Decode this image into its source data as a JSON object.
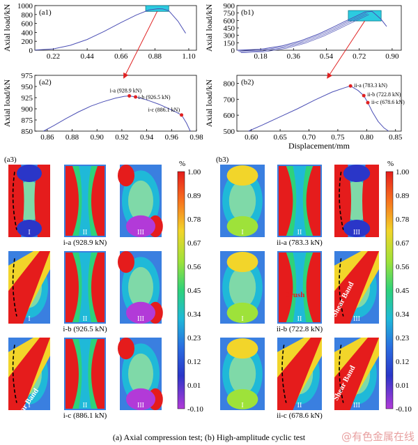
{
  "caption": "(a) Axial compression test; (b) High-amplitude cyclic test",
  "watermark": "@有色金属在线",
  "colors": {
    "curve": "#4b4fb5",
    "point": "#e02020",
    "arrow": "#e02020",
    "zoom_box": "#2ccbe0"
  },
  "chart_data": [
    {
      "id": "a1",
      "panel_label": "(a1)",
      "type": "line",
      "ylabel": "Axial load/kN",
      "xlabel": "",
      "xlim": [
        0.1,
        1.15
      ],
      "ylim": [
        0,
        1000
      ],
      "x_ticks": [
        "0.22",
        "0.44",
        "0.66",
        "0.88",
        "1.10"
      ],
      "y_ticks": [
        "0",
        "200",
        "400",
        "600",
        "800",
        "1000"
      ],
      "highlight_box": {
        "x": [
          0.82,
          0.97
        ],
        "y": [
          870,
          1000
        ]
      },
      "series": [
        {
          "x": [
            0.1,
            0.22,
            0.33,
            0.44,
            0.55,
            0.66,
            0.76,
            0.84,
            0.9,
            0.93,
            0.97,
            1.03,
            1.08
          ],
          "y": [
            5,
            30,
            110,
            240,
            420,
            620,
            790,
            900,
            930,
            926,
            886,
            650,
            380
          ]
        }
      ]
    },
    {
      "id": "a2",
      "panel_label": "(a2)",
      "type": "line",
      "ylabel": "Axial load/kN",
      "xlabel": "",
      "xlim": [
        0.85,
        0.98
      ],
      "ylim": [
        850,
        975
      ],
      "x_ticks": [
        "0.86",
        "0.88",
        "0.90",
        "0.92",
        "0.94",
        "0.96",
        "0.98"
      ],
      "y_ticks": [
        "850",
        "875",
        "900",
        "925",
        "950",
        "975"
      ],
      "points": [
        {
          "label": "i-a (928.9 kN)",
          "x": 0.926,
          "y": 928.9
        },
        {
          "label": "i-b (926.5 kN)",
          "x": 0.931,
          "y": 926.5
        },
        {
          "label": "i-c (886.1 kN)",
          "x": 0.968,
          "y": 886.1
        }
      ],
      "series": [
        {
          "x": [
            0.857,
            0.865,
            0.875,
            0.885,
            0.895,
            0.905,
            0.915,
            0.922,
            0.926,
            0.931,
            0.94,
            0.95,
            0.958,
            0.964,
            0.968,
            0.972,
            0.975
          ],
          "y": [
            850,
            862,
            878,
            893,
            906,
            916,
            924,
            928,
            928.9,
            926.5,
            920,
            910,
            900,
            892,
            886.1,
            868,
            850
          ]
        }
      ]
    },
    {
      "id": "b1",
      "panel_label": "(b1)",
      "type": "line",
      "ylabel": "Axial load/kN",
      "xlabel": "",
      "xlim": [
        0.05,
        0.95
      ],
      "ylim": [
        0,
        900
      ],
      "x_ticks": [
        "0.18",
        "0.36",
        "0.54",
        "0.72",
        "0.90"
      ],
      "y_ticks": [
        "0",
        "150",
        "300",
        "450",
        "600",
        "750",
        "900"
      ],
      "highlight_box": {
        "x": [
          0.66,
          0.84
        ],
        "y": [
          590,
          800
        ]
      },
      "series": [
        {
          "x": [
            0.05,
            0.18,
            0.3,
            0.4,
            0.5,
            0.58,
            0.64,
            0.7,
            0.75,
            0.79,
            0.81,
            0.84,
            0.87
          ],
          "y": [
            0,
            20,
            90,
            190,
            330,
            470,
            580,
            680,
            770,
            783,
            720,
            620,
            480
          ]
        }
      ]
    },
    {
      "id": "b2",
      "panel_label": "(b2)",
      "type": "line",
      "ylabel": "Axial load/kN",
      "xlabel": "Displacement/mm",
      "xlim": [
        0.575,
        0.86
      ],
      "ylim": [
        500,
        850
      ],
      "x_ticks": [
        "0.60",
        "0.65",
        "0.70",
        "0.75",
        "0.80",
        "0.85"
      ],
      "y_ticks": [
        "500",
        "600",
        "700",
        "800"
      ],
      "points": [
        {
          "label": "ii-a (783.3 kN)",
          "x": 0.772,
          "y": 783.3
        },
        {
          "label": "ii-b (722.8 kN)",
          "x": 0.795,
          "y": 722.8
        },
        {
          "label": "ii-c (678.6 kN)",
          "x": 0.802,
          "y": 678.6
        }
      ],
      "series": [
        {
          "x": [
            0.595,
            0.62,
            0.65,
            0.68,
            0.71,
            0.74,
            0.76,
            0.772,
            0.785,
            0.795,
            0.802,
            0.81,
            0.82,
            0.83,
            0.838
          ],
          "y": [
            500,
            540,
            590,
            640,
            695,
            745,
            770,
            783.3,
            755,
            722.8,
            678.6,
            620,
            560,
            520,
            500
          ]
        }
      ]
    },
    {
      "id": "a3",
      "panel_label": "(a3)",
      "type": "heatmap",
      "colorbar": {
        "unit": "%",
        "ticks": [
          "1.00",
          "0.89",
          "0.78",
          "0.67",
          "0.56",
          "0.45",
          "0.34",
          "0.23",
          "0.12",
          "0.01",
          "-0.10"
        ]
      },
      "column_labels": [
        "I",
        "II",
        "III"
      ],
      "row_labels": [
        "i-a (928.9 kN)",
        "i-b (926.5 kN)",
        "i-c (886.1 kN)"
      ],
      "annotations": [
        "Shear Band"
      ]
    },
    {
      "id": "b3",
      "panel_label": "(b3)",
      "type": "heatmap",
      "colorbar": {
        "unit": "%",
        "ticks": [
          "1.00",
          "0.89",
          "0.78",
          "0.67",
          "0.56",
          "0.45",
          "0.34",
          "0.23",
          "0.12",
          "0.01",
          "-0.10"
        ]
      },
      "column_labels": [
        "I",
        "II",
        "III"
      ],
      "row_labels": [
        "ii-a (783.3 kN)",
        "ii-b (722.8 kN)",
        "ii-c (678.6 kN)"
      ],
      "annotations": [
        "Crush",
        "Shear Band",
        "Shear Band"
      ]
    }
  ]
}
